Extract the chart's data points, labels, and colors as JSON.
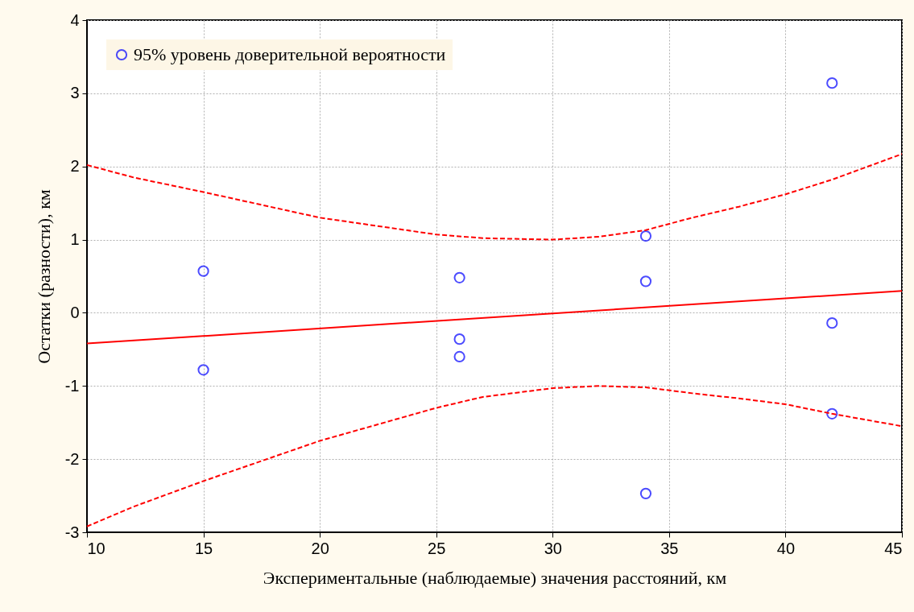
{
  "chart_data": {
    "type": "scatter",
    "xlabel": "Экспериментальные (наблюдаемые) значения расстояний, км",
    "ylabel": "Остатки (разности), км",
    "xlim": [
      10,
      45
    ],
    "ylim": [
      -3,
      4
    ],
    "xticks": [
      10,
      15,
      20,
      25,
      30,
      35,
      40,
      45
    ],
    "yticks": [
      -3,
      -2,
      -1,
      0,
      1,
      2,
      3,
      4
    ],
    "grid": true,
    "legend": "top left",
    "series": [
      {
        "name": "95% уровень доверительной вероятности",
        "marker": "circle",
        "color": "#0000ff",
        "x": [
          15,
          15,
          26,
          26,
          26,
          34,
          34,
          34,
          42,
          42,
          42
        ],
        "values": [
          0.57,
          -0.78,
          0.48,
          -0.36,
          -0.6,
          1.05,
          0.43,
          -2.47,
          3.14,
          -0.14,
          -1.38
        ]
      },
      {
        "type": "line",
        "color": "#ff0000",
        "line_style": "solid",
        "x": [
          10,
          45
        ],
        "values": [
          -0.42,
          0.3
        ]
      },
      {
        "type": "line",
        "color": "#ff0000",
        "line_style": "dashed",
        "x": [
          10,
          12,
          15,
          20,
          25,
          27,
          30,
          32,
          34,
          36,
          38,
          40,
          42,
          45
        ],
        "values": [
          2.02,
          1.85,
          1.65,
          1.3,
          1.07,
          1.02,
          1.0,
          1.04,
          1.13,
          1.3,
          1.45,
          1.62,
          1.82,
          2.17
        ]
      },
      {
        "type": "line",
        "color": "#ff0000",
        "line_style": "dashed",
        "x": [
          10,
          12,
          15,
          20,
          25,
          27,
          30,
          32,
          34,
          36,
          38,
          40,
          42,
          45
        ],
        "values": [
          -2.92,
          -2.65,
          -2.3,
          -1.75,
          -1.3,
          -1.15,
          -1.03,
          -1.0,
          -1.02,
          -1.1,
          -1.17,
          -1.25,
          -1.38,
          -1.55
        ]
      }
    ]
  }
}
